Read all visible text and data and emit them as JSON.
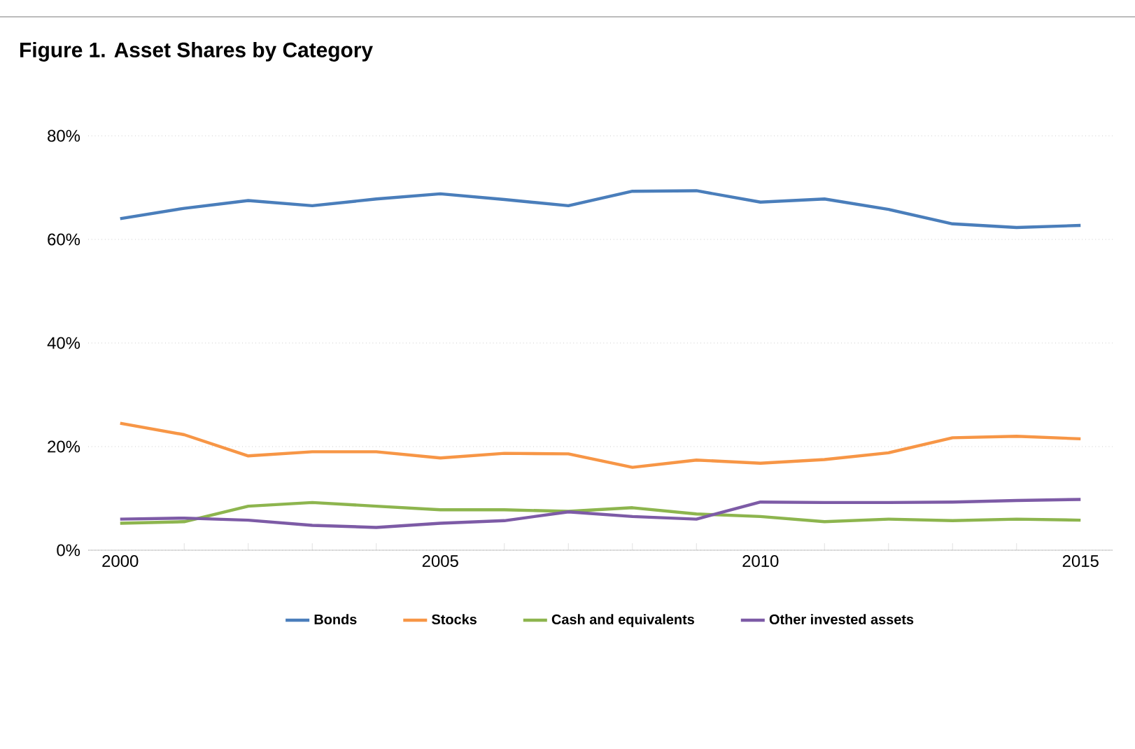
{
  "chart_data": {
    "type": "line",
    "title": "Figure 1. Asset Shares by Category",
    "x": [
      2000,
      2001,
      2002,
      2003,
      2004,
      2005,
      2006,
      2007,
      2008,
      2009,
      2010,
      2011,
      2012,
      2013,
      2014,
      2015
    ],
    "xlim": [
      1999.5,
      2015.5
    ],
    "xticks": [
      2000,
      2005,
      2010,
      2015
    ],
    "ylim": [
      0,
      80
    ],
    "yticks": [
      {
        "value": 0,
        "label": "0%"
      },
      {
        "value": 20,
        "label": "20%"
      },
      {
        "value": 40,
        "label": "40%"
      },
      {
        "value": 60,
        "label": "60%"
      },
      {
        "value": 80,
        "label": "80%"
      }
    ],
    "grid": "y",
    "legend": "bottom",
    "marker": "none",
    "line_style": "solid",
    "series": [
      {
        "name": "Bonds",
        "color": "#4a7ebb",
        "values": [
          64,
          66,
          67.5,
          66.5,
          67.8,
          68.8,
          67.7,
          66.5,
          69.3,
          69.4,
          67.2,
          67.8,
          65.8,
          63,
          62.3,
          62.7
        ]
      },
      {
        "name": "Stocks",
        "color": "#f79646",
        "values": [
          24.5,
          22.3,
          18.2,
          19,
          19,
          17.8,
          18.7,
          18.6,
          16,
          17.4,
          16.8,
          17.5,
          18.8,
          21.7,
          22,
          21.5
        ]
      },
      {
        "name": "Cash and equivalents",
        "color": "#8db54e",
        "values": [
          5.2,
          5.5,
          8.5,
          9.2,
          8.5,
          7.8,
          7.8,
          7.5,
          8.2,
          7,
          6.5,
          5.5,
          6,
          5.7,
          6,
          5.8
        ]
      },
      {
        "name": "Other invested assets",
        "color": "#7d5ba6",
        "values": [
          6,
          6.2,
          5.8,
          4.8,
          4.4,
          5.2,
          5.7,
          7.4,
          6.5,
          6,
          9.3,
          9.2,
          9.2,
          9.3,
          9.6,
          9.8
        ]
      }
    ]
  }
}
